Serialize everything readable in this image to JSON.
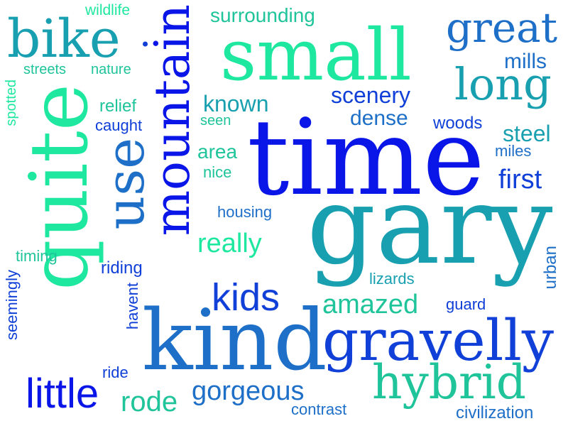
{
  "palette": {
    "deep_blue": "#0a16e8",
    "royal_blue": "#1040d8",
    "mid_blue": "#1e6fc8",
    "teal": "#1896b0",
    "sea_green": "#1fc49a",
    "mint": "#1ee8a0"
  },
  "words": {
    "wildlife": "wildlife",
    "bike": "bike",
    "streets": "streets",
    "nature": "nature",
    "spotted": "spotted",
    "quite": "quite",
    "relief": "relief",
    "caught": "caught",
    "use": "use",
    "mountain": "mountain",
    "surrounding": "surrounding",
    "small": "small",
    "great": "great",
    "mills": "mills",
    "long": "long",
    "scenery": "scenery",
    "known": "known",
    "seen": "seen",
    "dense": "dense",
    "woods": "woods",
    "steel": "steel",
    "miles": "miles",
    "time": "time",
    "area": "area",
    "nice": "nice",
    "first": "first",
    "housing": "housing",
    "gary": "gary",
    "really": "really",
    "timing": "timing",
    "riding": "riding",
    "seemingly": "seemingly",
    "havent": "havent",
    "kids": "kids",
    "lizards": "lizards",
    "urban": "urban",
    "amazed": "amazed",
    "guard": "guard",
    "kind": "kind",
    "gravelly": "gravelly",
    "ride": "ride",
    "little": "little",
    "rode": "rode",
    "gorgeous": "gorgeous",
    "hybrid": "hybrid",
    "contrast": "contrast",
    "civilization": "civilization"
  }
}
